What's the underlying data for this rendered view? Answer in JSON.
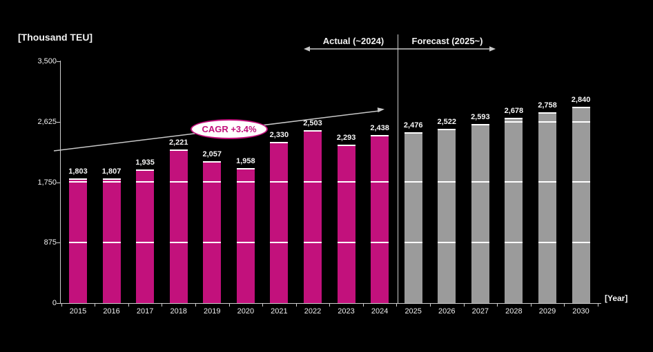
{
  "colors": {
    "background": "#000000",
    "actual_bar": "#c2117c",
    "forecast_bar": "#9b9b9b",
    "axis": "#cfcfcf",
    "gridline": "#ffffff",
    "text": "#f2f2f2",
    "cagr_text": "#c2117c",
    "cagr_fill": "#ffffff"
  },
  "y_axis": {
    "title": "[Thousand TEU]",
    "tick_labels": [
      "3,500",
      "2,625",
      "1,750",
      "875",
      "0"
    ],
    "tick_values": [
      3500,
      2625,
      1750,
      875,
      0
    ]
  },
  "x_axis": {
    "title": "[Year]"
  },
  "header": {
    "actual": "Actual (~2024)",
    "forecast": "Forecast (2025~)"
  },
  "cagr": {
    "label": "CAGR +3.4%"
  },
  "chart_data": {
    "type": "bar",
    "title": "",
    "xlabel": "[Year]",
    "ylabel": "[Thousand TEU]",
    "ylim": [
      0,
      3500
    ],
    "grid": "white gridlines visible where they cross bars",
    "white_gridlines": [
      875,
      1750,
      2625
    ],
    "categories": [
      "2015",
      "2016",
      "2017",
      "2018",
      "2019",
      "2020",
      "2021",
      "2022",
      "2023",
      "2024",
      "2025",
      "2026",
      "2027",
      "2028",
      "2029",
      "2030"
    ],
    "value_labels": [
      "1,803",
      "1,807",
      "1,935",
      "2,221",
      "2,057",
      "1,958",
      "2,330",
      "2,503",
      "2,293",
      "2,438",
      "2,476",
      "2,522",
      "2,593",
      "2,678",
      "2,758",
      "2,840"
    ],
    "series": [
      {
        "name": "Actual (~2024)",
        "color": "#c2117c",
        "categories": [
          "2015",
          "2016",
          "2017",
          "2018",
          "2019",
          "2020",
          "2021",
          "2022",
          "2023",
          "2024"
        ],
        "values": [
          1803,
          1807,
          1935,
          2221,
          2057,
          1958,
          2330,
          2503,
          2293,
          2438
        ]
      },
      {
        "name": "Forecast (2025~)",
        "color": "#9b9b9b",
        "categories": [
          "2025",
          "2026",
          "2027",
          "2028",
          "2029",
          "2030"
        ],
        "values": [
          2476,
          2522,
          2593,
          2678,
          2758,
          2840
        ]
      }
    ],
    "annotations": [
      "CAGR +3.4%"
    ],
    "legend_position": "top, split labels over actual/forecast regions separated by vertical divider line"
  }
}
